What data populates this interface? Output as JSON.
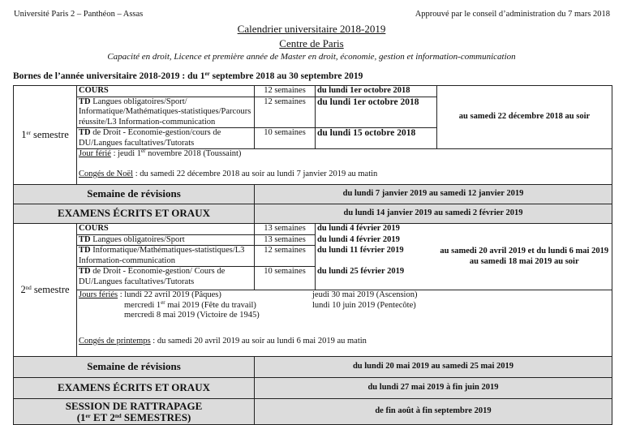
{
  "header": {
    "left": "Université Paris 2 – Panthéon – Assas",
    "right": "Approuvé par le conseil d’administration du 7 mars 2018"
  },
  "title": "Calendrier universitaire 2018-2019",
  "subtitle": "Centre de Paris",
  "scope": "Capacité en droit, Licence et première année de Master en droit, économie, gestion et information-communication",
  "bornes": {
    "pre": "Bornes de l’année universitaire 2018-2019 : du 1",
    "sup": "er",
    "post": " septembre 2018 au 30 septembre 2019"
  },
  "s1": {
    "label_num": "1",
    "label_sup": "er",
    "label": " semestre",
    "rows": [
      {
        "bold": "COURS",
        "text": "",
        "weeks": "12 semaines",
        "start": "du lundi 1er octobre 2018"
      },
      {
        "bold": "TD",
        "text": " Langues obligatoires/Sport/ Informatique/Mathématiques-statistiques/Parcours réussite/L3 Information-communication",
        "weeks": "12 semaines",
        "start": "du lundi 1er octobre 2018"
      },
      {
        "bold": "TD",
        "text": " de Droit - Economie-gestion/cours de DU/Langues facultatives/Tutorats",
        "weeks": "10 semaines",
        "start": "du lundi 15 octobre 2018"
      }
    ],
    "end": "au samedi 22 décembre 2018 au soir",
    "ferie_label": "Jour férié",
    "ferie_pre": " : jeudi 1",
    "ferie_sup": "er",
    "ferie_post": " novembre 2018 (Toussaint)",
    "conges_label": "Congés de Noël",
    "conges": " : du samedi 22 décembre 2018 au soir au lundi 7 janvier 2019 au matin"
  },
  "rev1": {
    "label": "Semaine de révisions",
    "dates": "du lundi 7 janvier 2019 au samedi 12 janvier 2019"
  },
  "exam1": {
    "label": "EXAMENS ÉCRITS ET ORAUX",
    "dates": "du lundi 14 janvier 2019 au samedi 2 février 2019"
  },
  "s2": {
    "label_num": "2",
    "label_sup": "nd",
    "label": " semestre",
    "rows": [
      {
        "bold": "COURS",
        "text": "",
        "weeks": "13 semaines",
        "start": "du lundi 4 février 2019"
      },
      {
        "bold": "TD",
        "text": " Langues obligatoires/Sport",
        "weeks": "13 semaines",
        "start": "du lundi 4 février 2019"
      },
      {
        "bold": "TD",
        "text": " Informatique/Mathématiques-statistiques/L3 Information-communication",
        "weeks": "12 semaines",
        "start": "du lundi 11 février 2019"
      },
      {
        "bold": "TD",
        "text": " de Droit - Economie-gestion/ Cours de DU/Langues facultatives/Tutorats",
        "weeks": "10 semaines",
        "start": "du lundi 25 février 2019"
      }
    ],
    "end": "au samedi 20 avril 2019 et du lundi 6 mai 2019 au samedi 18 mai 2019 au soir",
    "feries_label": "Jours fériés",
    "feries_1": " : lundi 22 avril 2019 (Pâques)",
    "feries_2_pre": "mercredi 1",
    "feries_2_sup": "er",
    "feries_2_post": " mai 2019 (Fête du travail)",
    "feries_3": "mercredi 8 mai 2019 (Victoire de 1945)",
    "feries_4": "jeudi 30 mai 2019 (Ascension)",
    "feries_5": "lundi 10 juin 2019 (Pentecôte)",
    "conges_label": "Congés de printemps",
    "conges": " : du samedi 20 avril 2019 au soir au lundi 6 mai 2019 au matin"
  },
  "rev2": {
    "label": "Semaine de révisions",
    "dates": "du lundi 20 mai 2019 au samedi 25 mai 2019"
  },
  "exam2": {
    "label": "EXAMENS ÉCRITS ET ORAUX",
    "dates": "du lundi 27 mai 2019 à fin juin 2019"
  },
  "ratt": {
    "label1": "SESSION DE RATTRAPAGE",
    "l2a": "(1",
    "l2s1": "er",
    "l2b": " ET 2",
    "l2s2": "nd",
    "l2c": " SEMESTRES)",
    "dates": "de fin août à fin septembre 2019"
  }
}
